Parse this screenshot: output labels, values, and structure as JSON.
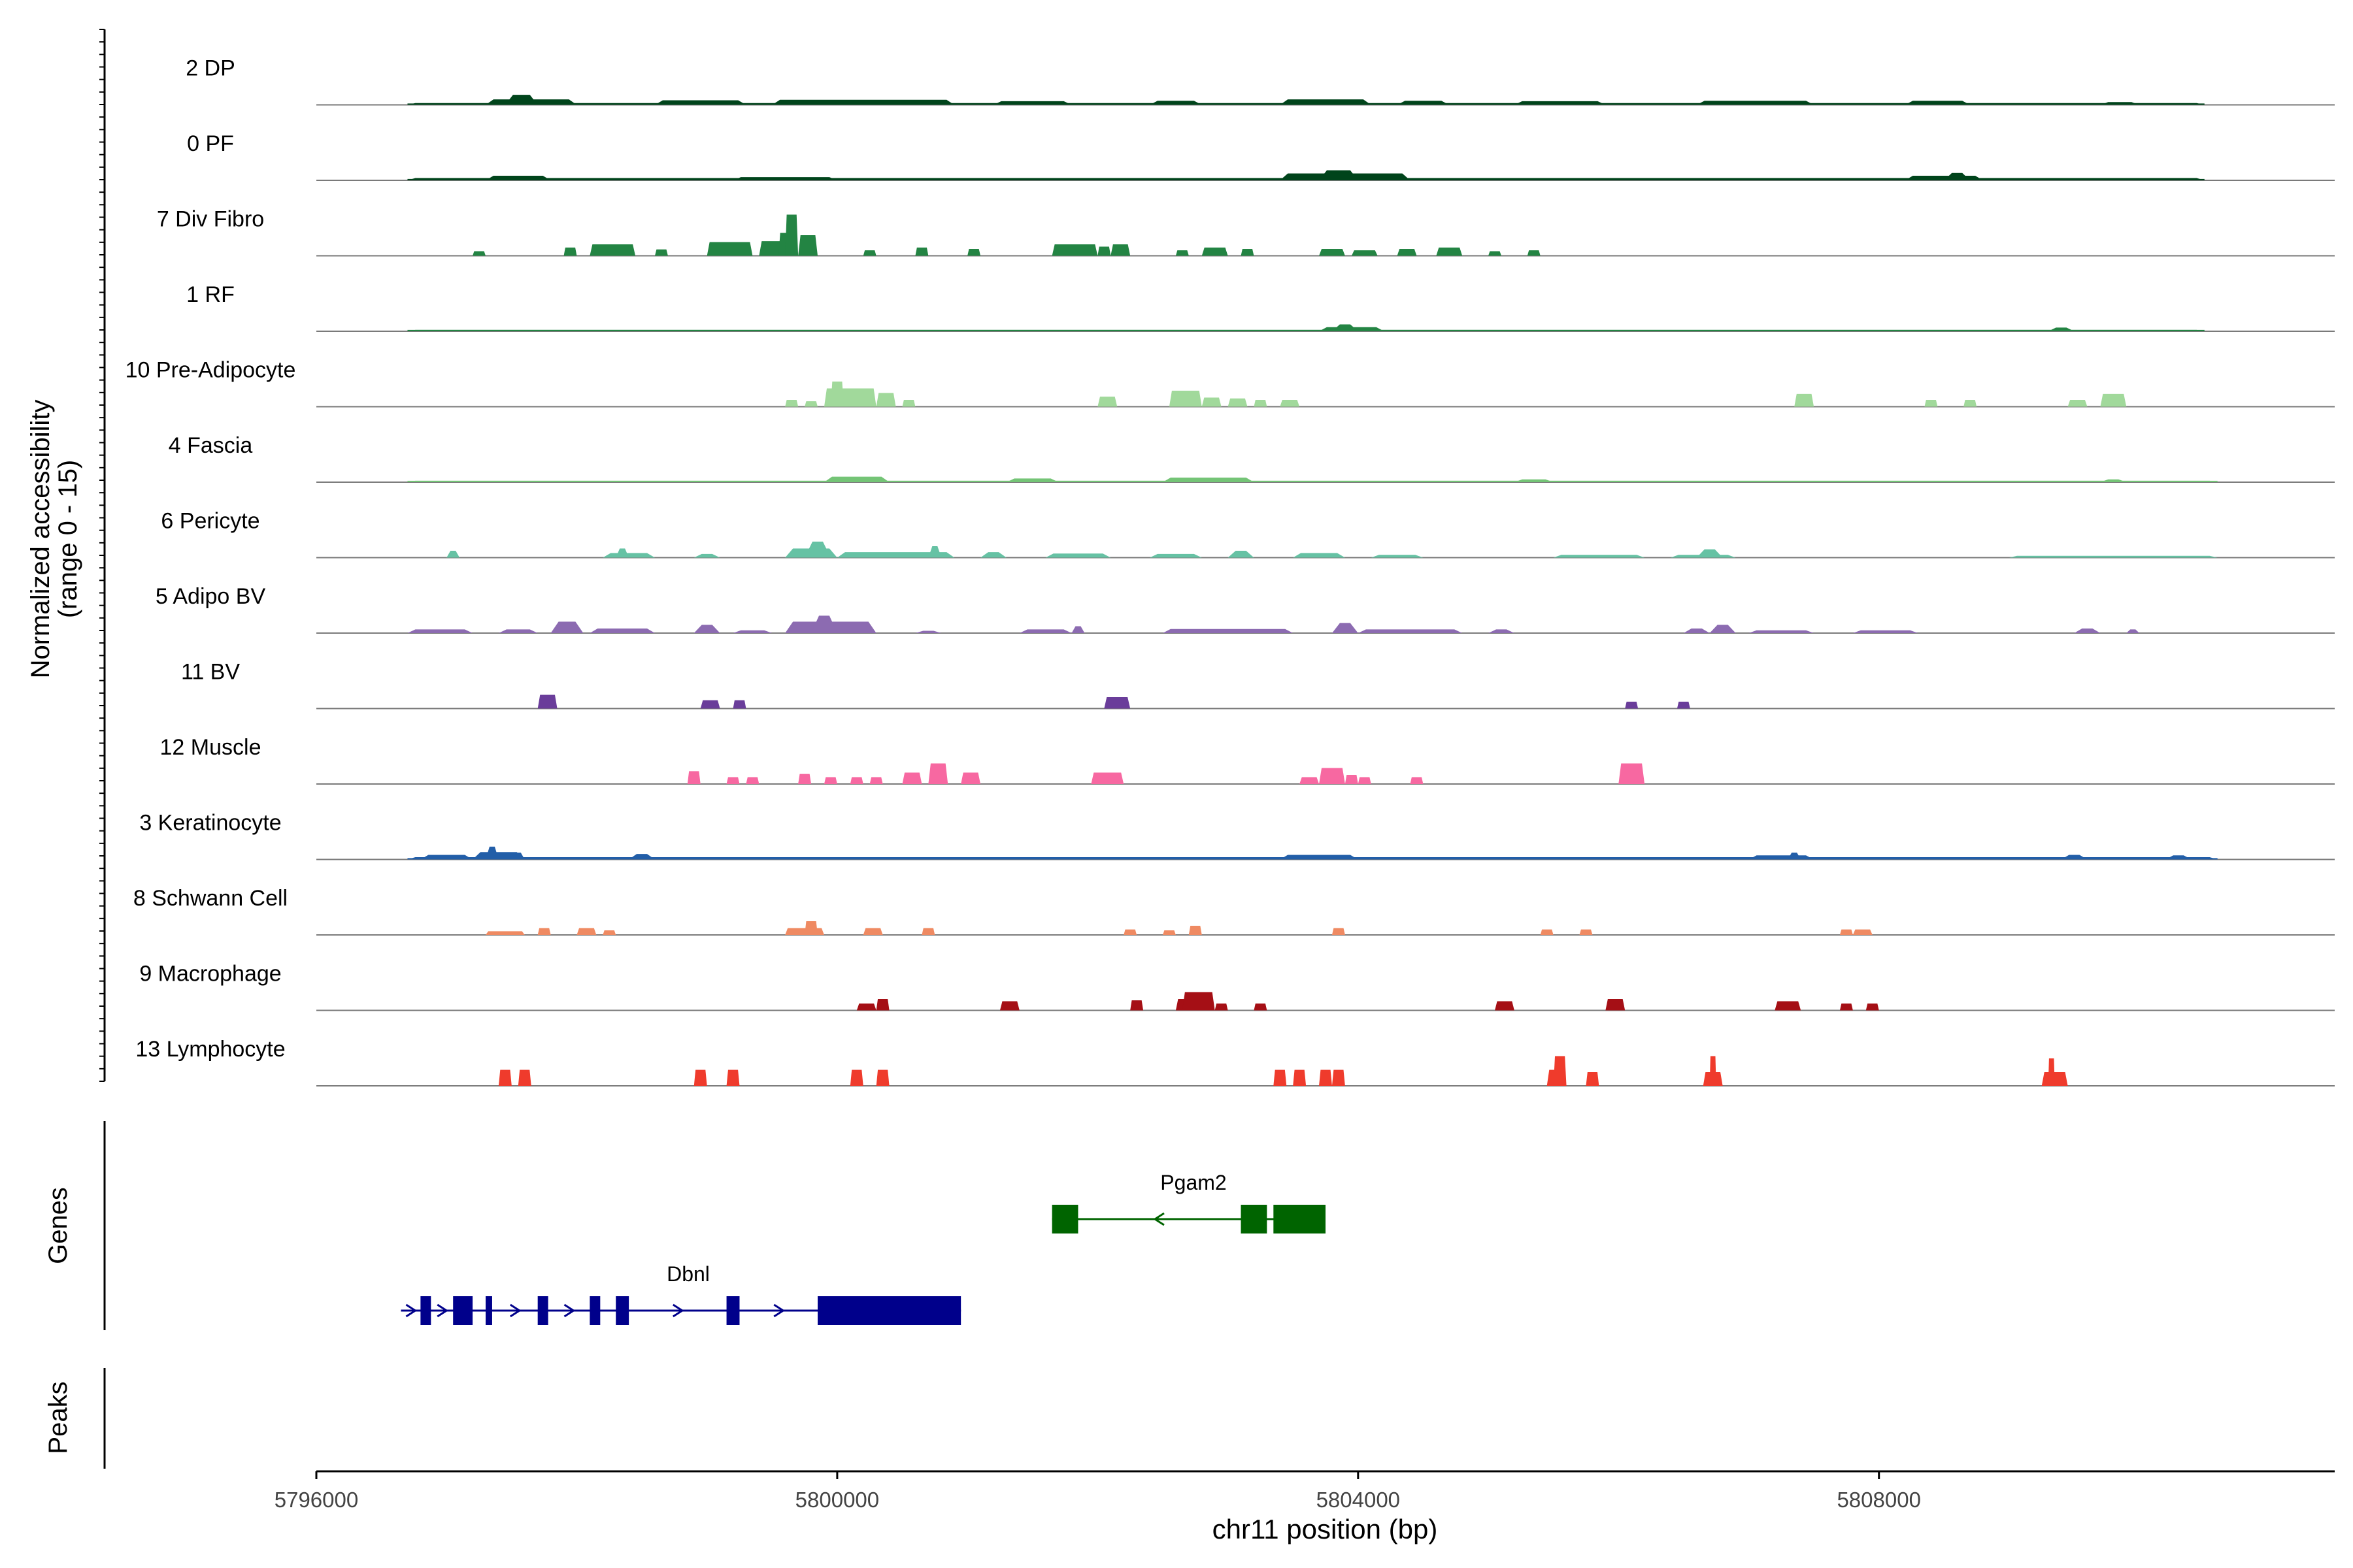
{
  "chart_data": {
    "type": "area",
    "title": "",
    "ylabel_line1": "Normalized accessibility",
    "ylabel_line2": "(range 0 - 15)",
    "genes_label": "Genes",
    "peaks_label": "Peaks",
    "xlabel": "chr11 position (bp)",
    "xlim": [
      5796000,
      5811500
    ],
    "ylim": [
      0,
      15
    ],
    "x_ticks": [
      5796000,
      5800000,
      5804000,
      5808000
    ],
    "x_tick_labels": [
      "5796000",
      "5800000",
      "5804000",
      "5808000"
    ],
    "tracks": [
      {
        "name": "2 DP",
        "color": "#00441B",
        "style": "smooth",
        "range": [
          5796700,
          5810500
        ],
        "regions": [
          [
            5796700,
            5810500,
            0.4
          ],
          [
            5797300,
            5798000,
            1.2
          ],
          [
            5797450,
            5797700,
            2.2
          ],
          [
            5798600,
            5799300,
            1.0
          ],
          [
            5799500,
            5800900,
            1.1
          ],
          [
            5801200,
            5801800,
            0.8
          ],
          [
            5802400,
            5802800,
            0.9
          ],
          [
            5803400,
            5804100,
            1.2
          ],
          [
            5804300,
            5804700,
            0.9
          ],
          [
            5805200,
            5805900,
            0.8
          ],
          [
            5806600,
            5807500,
            0.9
          ],
          [
            5808200,
            5808700,
            0.9
          ],
          [
            5809700,
            5810000,
            0.6
          ]
        ]
      },
      {
        "name": "0 PF",
        "color": "#00441B",
        "style": "smooth",
        "range": [
          5796700,
          5810500
        ],
        "regions": [
          [
            5796700,
            5810500,
            0.5
          ],
          [
            5797300,
            5797800,
            1.0
          ],
          [
            5799200,
            5800000,
            0.7
          ],
          [
            5803400,
            5804400,
            1.5
          ],
          [
            5803700,
            5804000,
            2.2
          ],
          [
            5808200,
            5808800,
            1.0
          ],
          [
            5808500,
            5808700,
            1.6
          ]
        ]
      },
      {
        "name": "7 Div Fibro",
        "color": "#238443",
        "style": "blocky",
        "regions": [
          [
            5797200,
            5797300,
            1.0
          ],
          [
            5797900,
            5798000,
            1.8
          ],
          [
            5798100,
            5798450,
            2.5
          ],
          [
            5798600,
            5798700,
            1.4
          ],
          [
            5799000,
            5799350,
            3.0
          ],
          [
            5799400,
            5799700,
            3.2
          ],
          [
            5799550,
            5799650,
            5.0
          ],
          [
            5799600,
            5799700,
            9.0
          ],
          [
            5799700,
            5799850,
            4.5
          ],
          [
            5800200,
            5800300,
            1.2
          ],
          [
            5800600,
            5800700,
            1.8
          ],
          [
            5801000,
            5801100,
            1.5
          ],
          [
            5801650,
            5802000,
            2.5
          ],
          [
            5802000,
            5802100,
            2.0
          ],
          [
            5802100,
            5802250,
            2.5
          ],
          [
            5802600,
            5802700,
            1.2
          ],
          [
            5802800,
            5803000,
            1.8
          ],
          [
            5803100,
            5803200,
            1.5
          ],
          [
            5803700,
            5803900,
            1.5
          ],
          [
            5803950,
            5804150,
            1.2
          ],
          [
            5804300,
            5804450,
            1.5
          ],
          [
            5804600,
            5804800,
            1.8
          ],
          [
            5805000,
            5805100,
            1.0
          ],
          [
            5805300,
            5805400,
            1.2
          ]
        ]
      },
      {
        "name": "1 RF",
        "color": "#238443",
        "style": "smooth",
        "range": [
          5796700,
          5810500
        ],
        "regions": [
          [
            5796700,
            5810500,
            0.3
          ],
          [
            5803700,
            5804200,
            0.9
          ],
          [
            5803800,
            5804000,
            1.5
          ],
          [
            5809300,
            5809500,
            0.8
          ]
        ]
      },
      {
        "name": "10 Pre-Adipocyte",
        "color": "#A1D99B",
        "style": "blocky",
        "regions": [
          [
            5799600,
            5799700,
            1.5
          ],
          [
            5799750,
            5799850,
            1.2
          ],
          [
            5799900,
            5800300,
            4.0
          ],
          [
            5799950,
            5800050,
            5.5
          ],
          [
            5800300,
            5800450,
            3.0
          ],
          [
            5800500,
            5800600,
            1.5
          ],
          [
            5802000,
            5802150,
            2.2
          ],
          [
            5802550,
            5802800,
            3.5
          ],
          [
            5802800,
            5802950,
            2.0
          ],
          [
            5803000,
            5803150,
            1.8
          ],
          [
            5803200,
            5803300,
            1.5
          ],
          [
            5803400,
            5803550,
            1.5
          ],
          [
            5807350,
            5807500,
            2.8
          ],
          [
            5808350,
            5808450,
            1.5
          ],
          [
            5808650,
            5808750,
            1.5
          ],
          [
            5809450,
            5809600,
            1.5
          ],
          [
            5809700,
            5809900,
            2.8
          ]
        ]
      },
      {
        "name": "4 Fascia",
        "color": "#74C476",
        "style": "smooth",
        "range": [
          5796700,
          5810600
        ],
        "regions": [
          [
            5796700,
            5810600,
            0.3
          ],
          [
            5799900,
            5800400,
            1.2
          ],
          [
            5801300,
            5801700,
            0.8
          ],
          [
            5802500,
            5803200,
            1.0
          ],
          [
            5805200,
            5805500,
            0.6
          ],
          [
            5809700,
            5809900,
            0.6
          ]
        ]
      },
      {
        "name": "6 Pericyte",
        "color": "#66C2A4",
        "style": "smooth",
        "regions": [
          [
            5797000,
            5797100,
            1.5
          ],
          [
            5798200,
            5798600,
            1.0
          ],
          [
            5798300,
            5798400,
            2.0
          ],
          [
            5798900,
            5799100,
            0.8
          ],
          [
            5799600,
            5800000,
            2.0
          ],
          [
            5799750,
            5799950,
            3.5
          ],
          [
            5800000,
            5800900,
            1.2
          ],
          [
            5800700,
            5800800,
            2.5
          ],
          [
            5801100,
            5801300,
            1.2
          ],
          [
            5801600,
            5802100,
            0.9
          ],
          [
            5802400,
            5802800,
            0.8
          ],
          [
            5803000,
            5803200,
            1.5
          ],
          [
            5803500,
            5803900,
            1.0
          ],
          [
            5804100,
            5804500,
            0.6
          ],
          [
            5805500,
            5806200,
            0.6
          ],
          [
            5806400,
            5806900,
            0.6
          ],
          [
            5806600,
            5806800,
            1.8
          ],
          [
            5809000,
            5810600,
            0.4
          ]
        ]
      },
      {
        "name": "5 Adipo BV",
        "color": "#8C6BB1",
        "style": "smooth",
        "regions": [
          [
            5796700,
            5797200,
            0.8
          ],
          [
            5797400,
            5797700,
            0.8
          ],
          [
            5797800,
            5798050,
            2.5
          ],
          [
            5798100,
            5798600,
            1.0
          ],
          [
            5798900,
            5799100,
            1.8
          ],
          [
            5799200,
            5799500,
            0.6
          ],
          [
            5799600,
            5800300,
            2.5
          ],
          [
            5799800,
            5800000,
            3.8
          ],
          [
            5800600,
            5800800,
            0.5
          ],
          [
            5801400,
            5801800,
            0.8
          ],
          [
            5801800,
            5801900,
            1.5
          ],
          [
            5802500,
            5803500,
            0.9
          ],
          [
            5803800,
            5804000,
            2.2
          ],
          [
            5804000,
            5804800,
            0.8
          ],
          [
            5805000,
            5805200,
            0.8
          ],
          [
            5806500,
            5806700,
            1.0
          ],
          [
            5806700,
            5806900,
            1.8
          ],
          [
            5807000,
            5807500,
            0.6
          ],
          [
            5807800,
            5808300,
            0.6
          ],
          [
            5809500,
            5809700,
            1.0
          ],
          [
            5809900,
            5810000,
            0.8
          ]
        ]
      },
      {
        "name": "11 BV",
        "color": "#6A3D9A",
        "style": "blocky",
        "regions": [
          [
            5797700,
            5797850,
            3.0
          ],
          [
            5798950,
            5799100,
            1.8
          ],
          [
            5799200,
            5799300,
            1.8
          ],
          [
            5802050,
            5802250,
            2.5
          ],
          [
            5806050,
            5806150,
            1.5
          ],
          [
            5806450,
            5806550,
            1.5
          ]
        ]
      },
      {
        "name": "12 Muscle",
        "color": "#F768A1",
        "style": "blocky",
        "regions": [
          [
            5798850,
            5798950,
            2.8
          ],
          [
            5799150,
            5799250,
            1.5
          ],
          [
            5799300,
            5799400,
            1.5
          ],
          [
            5799700,
            5799800,
            2.2
          ],
          [
            5799900,
            5800000,
            1.5
          ],
          [
            5800100,
            5800200,
            1.5
          ],
          [
            5800250,
            5800350,
            1.5
          ],
          [
            5800500,
            5800650,
            2.5
          ],
          [
            5800700,
            5800850,
            4.5
          ],
          [
            5800950,
            5801100,
            2.5
          ],
          [
            5801950,
            5802200,
            2.5
          ],
          [
            5803550,
            5803700,
            1.5
          ],
          [
            5803700,
            5803900,
            3.5
          ],
          [
            5803900,
            5804000,
            2.0
          ],
          [
            5804000,
            5804100,
            1.5
          ],
          [
            5804400,
            5804500,
            1.5
          ],
          [
            5806000,
            5806200,
            4.5
          ]
        ]
      },
      {
        "name": "3 Keratinocyte",
        "color": "#225EA8",
        "style": "smooth",
        "range": [
          5796700,
          5810600
        ],
        "regions": [
          [
            5796700,
            5810600,
            0.5
          ],
          [
            5796800,
            5797200,
            1.0
          ],
          [
            5797200,
            5797600,
            1.6
          ],
          [
            5797300,
            5797400,
            2.8
          ],
          [
            5797500,
            5797600,
            1.5
          ],
          [
            5798400,
            5798600,
            1.2
          ],
          [
            5803400,
            5804000,
            1.0
          ],
          [
            5807000,
            5807500,
            0.9
          ],
          [
            5807300,
            5807400,
            1.5
          ],
          [
            5809400,
            5809600,
            1.0
          ],
          [
            5810200,
            5810400,
            0.9
          ]
        ]
      },
      {
        "name": "8 Schwann Cell",
        "color": "#EF8A62",
        "style": "blocky",
        "regions": [
          [
            5797300,
            5797600,
            0.8
          ],
          [
            5797700,
            5797800,
            1.5
          ],
          [
            5798000,
            5798150,
            1.5
          ],
          [
            5798200,
            5798300,
            1.0
          ],
          [
            5799600,
            5799900,
            1.5
          ],
          [
            5799750,
            5799850,
            3.0
          ],
          [
            5800200,
            5800350,
            1.5
          ],
          [
            5800650,
            5800750,
            1.5
          ],
          [
            5802200,
            5802300,
            1.2
          ],
          [
            5802500,
            5802600,
            1.0
          ],
          [
            5802700,
            5802800,
            2.0
          ],
          [
            5803800,
            5803900,
            1.5
          ],
          [
            5805400,
            5805500,
            1.2
          ],
          [
            5805700,
            5805800,
            1.2
          ],
          [
            5807700,
            5807800,
            1.2
          ],
          [
            5807800,
            5807950,
            1.2
          ]
        ]
      },
      {
        "name": "9 Macrophage",
        "color": "#A50F15",
        "style": "blocky",
        "regions": [
          [
            5800150,
            5800300,
            1.5
          ],
          [
            5800300,
            5800400,
            2.5
          ],
          [
            5801250,
            5801400,
            2.0
          ],
          [
            5802250,
            5802350,
            2.2
          ],
          [
            5802600,
            5802750,
            2.5
          ],
          [
            5802650,
            5802900,
            4.0
          ],
          [
            5802900,
            5803000,
            1.5
          ],
          [
            5803200,
            5803300,
            1.5
          ],
          [
            5805050,
            5805200,
            2.0
          ],
          [
            5805900,
            5806050,
            2.5
          ],
          [
            5807200,
            5807400,
            2.0
          ],
          [
            5807700,
            5807800,
            1.5
          ],
          [
            5807900,
            5808000,
            1.5
          ]
        ]
      },
      {
        "name": "13 Lymphocyte",
        "color": "#EF3B2C",
        "style": "blocky",
        "regions": [
          [
            5797400,
            5797500,
            3.5
          ],
          [
            5797550,
            5797650,
            3.5
          ],
          [
            5798900,
            5799000,
            3.5
          ],
          [
            5799150,
            5799250,
            3.5
          ],
          [
            5800100,
            5800200,
            3.5
          ],
          [
            5800300,
            5800400,
            3.5
          ],
          [
            5803350,
            5803450,
            3.5
          ],
          [
            5803500,
            5803600,
            3.5
          ],
          [
            5803700,
            5803800,
            3.5
          ],
          [
            5803800,
            5803900,
            3.5
          ],
          [
            5805450,
            5805600,
            3.5
          ],
          [
            5805500,
            5805600,
            6.5
          ],
          [
            5805750,
            5805850,
            3.0
          ],
          [
            5806650,
            5806800,
            3.0
          ],
          [
            5806700,
            5806750,
            6.5
          ],
          [
            5809250,
            5809450,
            3.0
          ],
          [
            5809300,
            5809350,
            6.0
          ]
        ]
      }
    ],
    "genes": [
      {
        "name": "Pgam2",
        "strand": "-",
        "color": "#006400",
        "start": 5801650,
        "end": 5803750,
        "exons": [
          [
            5801650,
            5801850
          ],
          [
            5803100,
            5803300
          ],
          [
            5803350,
            5803750
          ]
        ]
      },
      {
        "name": "Dbnl",
        "strand": "+",
        "color": "#00008B",
        "start": 5796650,
        "end": 5800950,
        "exons": [
          [
            5796800,
            5796880
          ],
          [
            5797050,
            5797200
          ],
          [
            5797300,
            5797350
          ],
          [
            5797700,
            5797780
          ],
          [
            5798100,
            5798180
          ],
          [
            5798300,
            5798400
          ],
          [
            5799150,
            5799250
          ],
          [
            5799850,
            5800950
          ]
        ]
      }
    ]
  }
}
